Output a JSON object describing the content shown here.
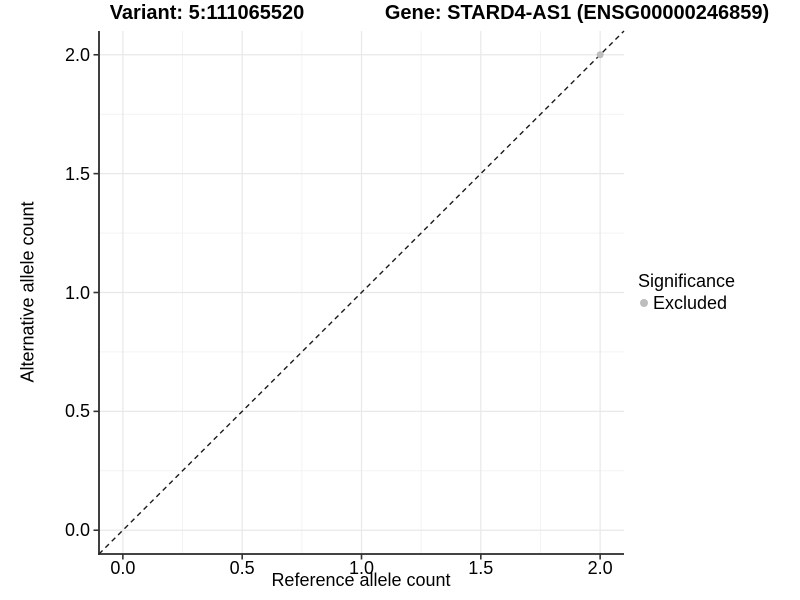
{
  "chart_data": {
    "type": "scatter",
    "variant_title": "Variant: 5:111065520",
    "gene_title": "Gene: STARD4-AS1 (ENSG00000246859)",
    "xlabel": "Reference allele count",
    "ylabel": "Alternative allele count",
    "xlim": [
      -0.1,
      2.1
    ],
    "ylim": [
      -0.1,
      2.1
    ],
    "xtick_values": [
      0,
      0.5,
      1,
      1.5,
      2
    ],
    "xtick_labels": [
      "0.0",
      "0.5",
      "1.0",
      "1.5",
      "2.0"
    ],
    "ytick_values": [
      0,
      0.5,
      1,
      1.5,
      2
    ],
    "ytick_labels": [
      "0.0",
      "0.5",
      "1.0",
      "1.5",
      "2.0"
    ],
    "minor_tick_values": [
      0.25,
      0.75,
      1.25,
      1.75
    ],
    "grid": {
      "on": true,
      "major_color": "#e8e8e8",
      "minor_color": "#f3f3f3"
    },
    "identity_line": {
      "style": "dashed",
      "x1": -0.1,
      "y1": -0.1,
      "x2": 2.1,
      "y2": 2.1,
      "color": "#1a1a1a"
    },
    "series": [
      {
        "name": "Excluded",
        "color": "#bdbdbd",
        "points": [
          {
            "x": 2,
            "y": 2
          }
        ]
      }
    ],
    "legend": {
      "title": "Significance",
      "position": "right",
      "entries": [
        {
          "label": "Excluded",
          "color": "#bdbdbd"
        }
      ]
    },
    "axis": {
      "line_color": "#2a2a2a",
      "tick_color": "#333333",
      "text_color": "#000000"
    },
    "background": "#ffffff"
  }
}
